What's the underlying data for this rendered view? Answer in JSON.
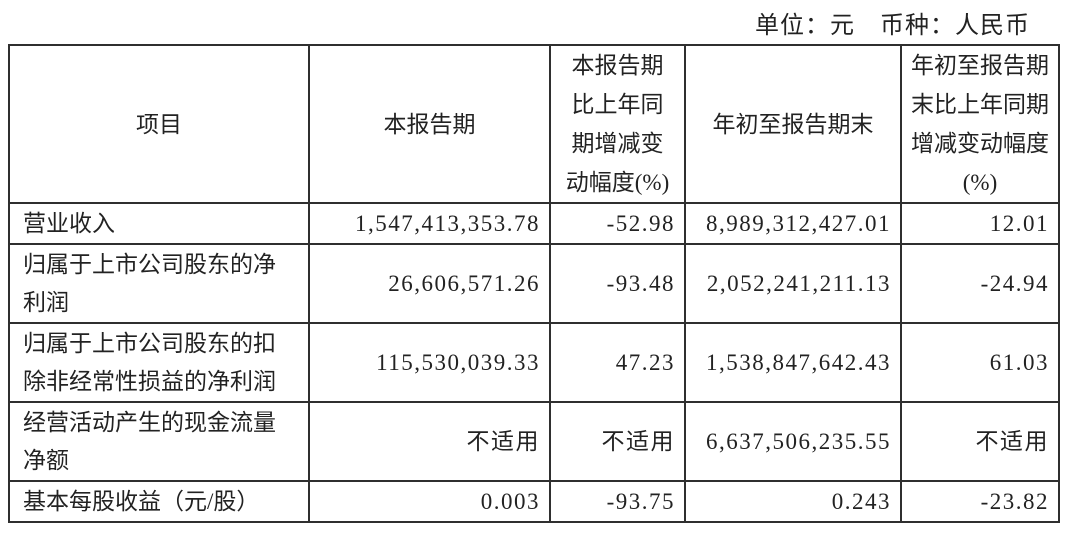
{
  "meta": {
    "unit_currency_note": "单位：元　币种：人民币"
  },
  "colors": {
    "background": "#ffffff",
    "text": "#222222",
    "border": "#2f2f2f"
  },
  "table": {
    "columns": [
      {
        "label": "项目"
      },
      {
        "label": "本报告期"
      },
      {
        "label": "本报告期\n比上年同\n期增减变\n动幅度(%)"
      },
      {
        "label": "年初至报告期末"
      },
      {
        "label": "年初至报告期\n末比上年同期\n增减变动幅度\n(%)"
      }
    ],
    "rows": [
      {
        "item": "营业收入",
        "current_period": "1,547,413,353.78",
        "current_change_pct": "-52.98",
        "ytd": "8,989,312,427.01",
        "ytd_change_pct": "12.01"
      },
      {
        "item": "归属于上市公司股东的净\n利润",
        "current_period": "26,606,571.26",
        "current_change_pct": "-93.48",
        "ytd": "2,052,241,211.13",
        "ytd_change_pct": "-24.94"
      },
      {
        "item": "归属于上市公司股东的扣\n除非经常性损益的净利润",
        "current_period": "115,530,039.33",
        "current_change_pct": "47.23",
        "ytd": "1,538,847,642.43",
        "ytd_change_pct": "61.03"
      },
      {
        "item": "经营活动产生的现金流量\n净额",
        "current_period": "不适用",
        "current_change_pct": "不适用",
        "ytd": "6,637,506,235.55",
        "ytd_change_pct": "不适用"
      },
      {
        "item": "基本每股收益（元/股）",
        "current_period": "0.003",
        "current_change_pct": "-93.75",
        "ytd": "0.243",
        "ytd_change_pct": "-23.82"
      }
    ]
  }
}
